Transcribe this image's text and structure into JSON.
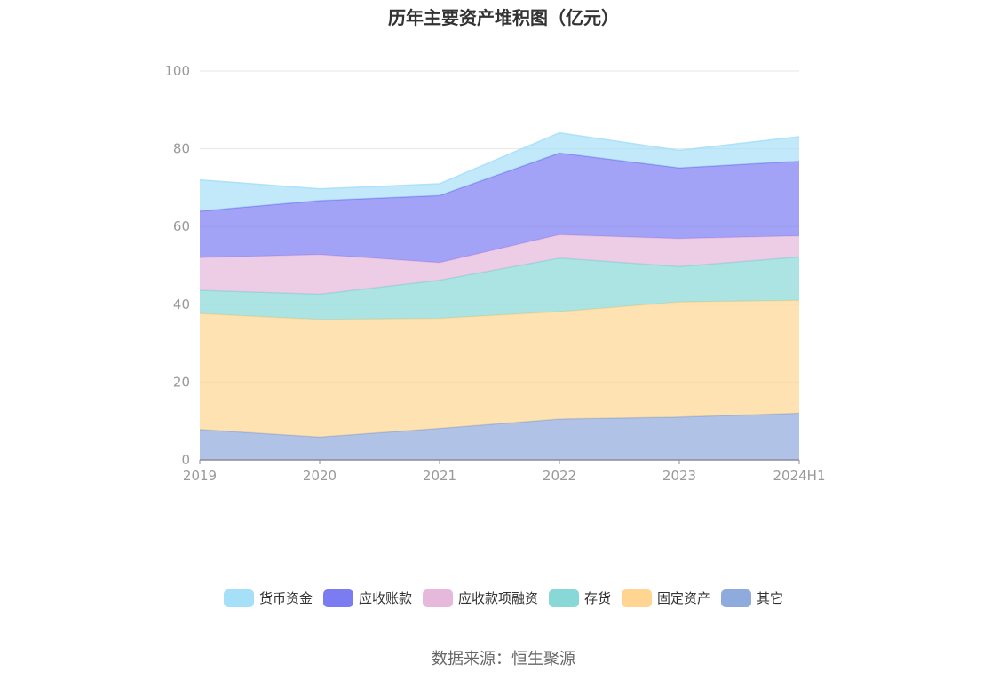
{
  "chart_data": {
    "type": "area",
    "stacked": true,
    "title": "历年主要资产堆积图（亿元）",
    "categories": [
      "2019",
      "2020",
      "2021",
      "2022",
      "2023",
      "2024H1"
    ],
    "ylim": [
      0,
      100
    ],
    "yticks": [
      0,
      20,
      40,
      60,
      80,
      100
    ],
    "grid": true,
    "legend_position": "bottom",
    "series": [
      {
        "name": "其它",
        "color": "#8FAADC",
        "values": [
          7.8,
          5.9,
          8.1,
          10.5,
          11.0,
          12.0
        ]
      },
      {
        "name": "固定资产",
        "color": "#FFD591",
        "values": [
          29.8,
          30.2,
          28.3,
          27.6,
          29.6,
          29.0
        ]
      },
      {
        "name": "存货",
        "color": "#87D8D6",
        "values": [
          6.0,
          6.5,
          9.8,
          13.8,
          9.1,
          11.2
        ]
      },
      {
        "name": "应收款项融资",
        "color": "#E6B8DC",
        "values": [
          8.4,
          10.2,
          4.5,
          6.0,
          7.2,
          5.4
        ]
      },
      {
        "name": "应收账款",
        "color": "#7B7BF2",
        "values": [
          12.0,
          13.9,
          17.3,
          21.0,
          18.2,
          19.2
        ]
      },
      {
        "name": "货币资金",
        "color": "#A6E0F8",
        "values": [
          8.0,
          3.0,
          3.0,
          5.2,
          4.5,
          6.3
        ]
      }
    ]
  },
  "source": "数据来源：恒生聚源"
}
